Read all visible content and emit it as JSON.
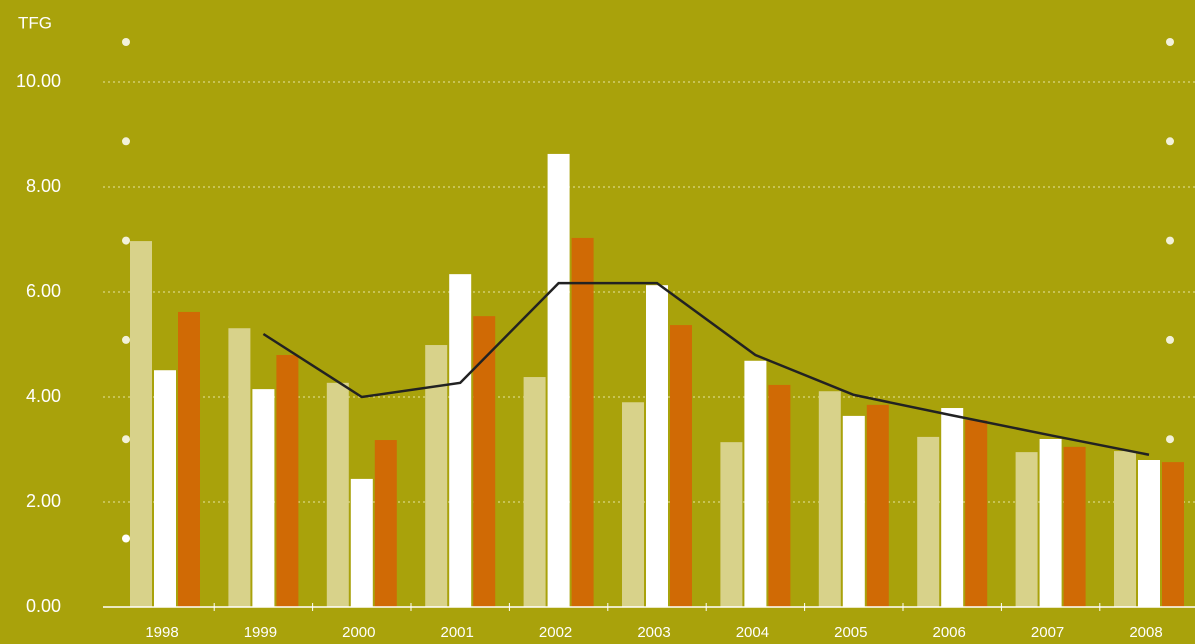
{
  "chart_data": {
    "type": "bar",
    "y_label": "TFG",
    "categories": [
      "1998",
      "1999",
      "2000",
      "2001",
      "2002",
      "2003",
      "2004",
      "2005",
      "2006",
      "2007",
      "2008"
    ],
    "series": [
      {
        "color": "#d8d28a",
        "values": [
          6.97,
          5.31,
          4.27,
          4.99,
          4.38,
          3.9,
          3.14,
          4.11,
          3.24,
          2.95,
          2.97
        ]
      },
      {
        "color": "#ffffff",
        "values": [
          4.51,
          4.15,
          2.44,
          6.34,
          8.63,
          6.13,
          4.69,
          3.64,
          3.79,
          3.2,
          2.8
        ]
      },
      {
        "color": "#d06a05",
        "values": [
          5.62,
          4.8,
          3.18,
          5.54,
          7.03,
          5.37,
          4.23,
          3.85,
          3.56,
          3.05,
          2.76
        ]
      },
      {
        "type": "line",
        "color": "#222222",
        "values": [
          null,
          5.2,
          4.0,
          4.27,
          6.17,
          6.17,
          4.8,
          4.04,
          3.65,
          3.27,
          2.9
        ]
      }
    ],
    "ylim": [
      0,
      10
    ],
    "yticks": [
      {
        "value": 0,
        "label": "0.00"
      },
      {
        "value": 2,
        "label": "2.00"
      },
      {
        "value": 4,
        "label": "4.00"
      },
      {
        "value": 6,
        "label": "6.00"
      },
      {
        "value": 8,
        "label": "8.00"
      },
      {
        "value": 10,
        "label": "10.00"
      }
    ],
    "grid": true
  }
}
